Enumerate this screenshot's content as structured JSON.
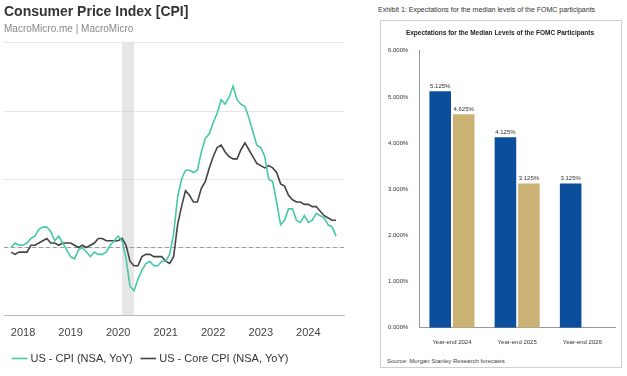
{
  "chart_data": [
    {
      "type": "line",
      "title": "Consumer Price Index [CPI]",
      "subtitle": "MacroMicro.me | MacroMicro",
      "x": [
        2017.75,
        2017.833,
        2017.917,
        2018.0,
        2018.083,
        2018.167,
        2018.25,
        2018.333,
        2018.417,
        2018.5,
        2018.583,
        2018.667,
        2018.75,
        2018.833,
        2018.917,
        2019.0,
        2019.083,
        2019.167,
        2019.25,
        2019.333,
        2019.417,
        2019.5,
        2019.583,
        2019.667,
        2019.75,
        2019.833,
        2019.917,
        2020.0,
        2020.083,
        2020.167,
        2020.25,
        2020.333,
        2020.417,
        2020.5,
        2020.583,
        2020.667,
        2020.75,
        2020.833,
        2020.917,
        2021.0,
        2021.083,
        2021.167,
        2021.25,
        2021.333,
        2021.417,
        2021.5,
        2021.583,
        2021.667,
        2021.75,
        2021.833,
        2021.917,
        2022.0,
        2022.083,
        2022.167,
        2022.25,
        2022.333,
        2022.417,
        2022.5,
        2022.583,
        2022.667,
        2022.75,
        2022.833,
        2022.917,
        2023.0,
        2023.083,
        2023.167,
        2023.25,
        2023.333,
        2023.417,
        2023.5,
        2023.583,
        2023.667,
        2023.75,
        2023.833,
        2023.917,
        2024.0,
        2024.083,
        2024.167,
        2024.25,
        2024.333,
        2024.417,
        2024.5,
        2024.583
      ],
      "series": [
        {
          "name": "US - CPI (NSA, YoY)",
          "color": "#45c9a6",
          "values": [
            2.0,
            2.2,
            2.1,
            2.1,
            2.2,
            2.4,
            2.5,
            2.8,
            2.9,
            2.9,
            2.7,
            2.3,
            2.5,
            2.2,
            1.9,
            1.6,
            1.5,
            1.9,
            2.0,
            1.8,
            1.6,
            1.8,
            1.7,
            1.7,
            1.8,
            2.1,
            2.3,
            2.5,
            2.3,
            1.5,
            0.3,
            0.1,
            0.6,
            1.0,
            1.3,
            1.4,
            1.2,
            1.2,
            1.4,
            1.4,
            1.7,
            2.6,
            4.2,
            5.0,
            5.4,
            5.4,
            5.3,
            5.4,
            6.2,
            6.8,
            7.0,
            7.5,
            7.9,
            8.5,
            8.3,
            8.6,
            9.1,
            8.5,
            8.3,
            8.2,
            7.7,
            7.1,
            6.5,
            6.4,
            6.0,
            5.0,
            4.9,
            4.0,
            3.0,
            3.2,
            3.7,
            3.7,
            3.2,
            3.1,
            3.4,
            3.1,
            3.2,
            3.5,
            3.4,
            3.3,
            3.0,
            2.9,
            2.5
          ]
        },
        {
          "name": "US - Core CPI (NSA, YoY)",
          "color": "#444444",
          "values": [
            1.8,
            1.7,
            1.8,
            1.8,
            1.8,
            2.1,
            2.1,
            2.2,
            2.3,
            2.4,
            2.2,
            2.2,
            2.1,
            2.2,
            2.2,
            2.2,
            2.1,
            2.0,
            2.1,
            2.0,
            2.1,
            2.2,
            2.4,
            2.4,
            2.3,
            2.3,
            2.3,
            2.3,
            2.4,
            2.1,
            1.4,
            1.2,
            1.2,
            1.6,
            1.7,
            1.7,
            1.6,
            1.6,
            1.6,
            1.4,
            1.3,
            1.6,
            3.0,
            3.8,
            4.5,
            4.3,
            4.0,
            4.0,
            4.6,
            4.9,
            5.5,
            6.0,
            6.4,
            6.5,
            6.2,
            6.0,
            5.9,
            5.9,
            6.3,
            6.6,
            6.3,
            6.0,
            5.7,
            5.6,
            5.5,
            5.6,
            5.5,
            5.3,
            4.8,
            4.7,
            4.3,
            4.1,
            4.0,
            4.0,
            3.9,
            3.9,
            3.8,
            3.8,
            3.6,
            3.4,
            3.3,
            3.2,
            3.2
          ]
        }
      ],
      "xlim": [
        2017.6,
        2024.75
      ],
      "xticks": [
        2018,
        2019,
        2020,
        2021,
        2022,
        2023,
        2024
      ],
      "ylim": [
        -1,
        11
      ],
      "yticks": [
        -1,
        2,
        5,
        8,
        11
      ],
      "grid": true,
      "tick_labels": "x",
      "legend": "bottom",
      "reference_line": 2,
      "shaded_range": [
        2020.083,
        2020.333
      ]
    },
    {
      "type": "bar",
      "header": "Exhibit 1: Expectations for the median levels of the FOMC participants",
      "title": "Expectations for the Median Levels of the FOMC Participants",
      "source": "Source: Morgan Stanley Research forecasts",
      "categories": [
        "Year-end 2024",
        "Year-end 2025",
        "Year-end 2026"
      ],
      "series": [
        {
          "color": "#0b4f9c",
          "values": [
            5.125,
            4.125,
            3.125
          ],
          "value_labels": [
            "5.125%",
            "4.125%",
            "3.125%"
          ]
        },
        {
          "color": "#c9b273",
          "values": [
            4.625,
            3.125,
            null
          ],
          "value_labels": [
            "4.625%",
            "3.125%",
            null
          ]
        }
      ],
      "ylim": [
        0,
        6
      ],
      "yticks": [
        {
          "value": 0,
          "label": "0.000%"
        },
        {
          "value": 1,
          "label": "1.000%"
        },
        {
          "value": 2,
          "label": "2.000%"
        },
        {
          "value": 3,
          "label": "3.000%"
        },
        {
          "value": 4,
          "label": "4.000%"
        },
        {
          "value": 5,
          "label": "5.000%"
        },
        {
          "value": 6,
          "label": "6.000%"
        }
      ],
      "grid": false,
      "data_labels": true
    }
  ]
}
